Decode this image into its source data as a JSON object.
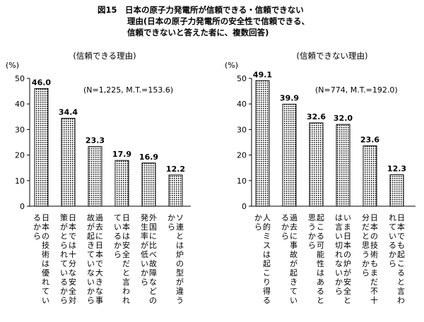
{
  "figure": {
    "number": "図15",
    "title_lines": [
      "日本の原子力発電所が信頼できる・信頼できない",
      "理由(日本の原子力発電所の安全性で信頼できる、",
      "信頼できないと答えた者に、複数回答)"
    ]
  },
  "colors": {
    "bar_outline": "#000000",
    "dot": "#000000",
    "background": "#ffffff"
  },
  "chart_data": [
    {
      "type": "bar",
      "title": "(信頼できる理由)",
      "unit_label": "(%)",
      "sample_note": "(N=1,225, M.T.=153.6)",
      "ylim": [
        0,
        50
      ],
      "yticks": [
        "0",
        "10",
        "20",
        "30",
        "40",
        "50"
      ],
      "categories": [
        "日本の技術は優れているから",
        "日本では十分な安全対策がとられているから",
        "過去に日本で大きな事故が起きていないから",
        "日本は安全だと言われているから",
        "外国に比べ故障などの発生率が低いから",
        "ソ連とは炉の型が違うから"
      ],
      "values": [
        46.0,
        34.4,
        23.3,
        17.9,
        16.9,
        12.2
      ],
      "value_labels": [
        "46.0",
        "34.4",
        "23.3",
        "17.9",
        "16.9",
        "12.2"
      ]
    },
    {
      "type": "bar",
      "title": "(信頼できない理由)",
      "unit_label": "(%)",
      "sample_note": "(N=774, M.T.=192.0)",
      "ylim": [
        0,
        50
      ],
      "yticks": [
        "0",
        "10",
        "20",
        "30",
        "40",
        "50"
      ],
      "categories": [
        "人的ミスは起こり得るから",
        "過去に事故が起きているから",
        "起こる可能性はあると思うから",
        "いま日本の炉が安全とは言い切れないから",
        "日本の技術もまだ不十分だと思うから",
        "日本でも起こると言われているから"
      ],
      "values": [
        49.1,
        39.9,
        32.6,
        32.0,
        23.6,
        12.3
      ],
      "value_labels": [
        "49.1",
        "39.9",
        "32.6",
        "32.0",
        "23.6",
        "12.3"
      ]
    }
  ]
}
